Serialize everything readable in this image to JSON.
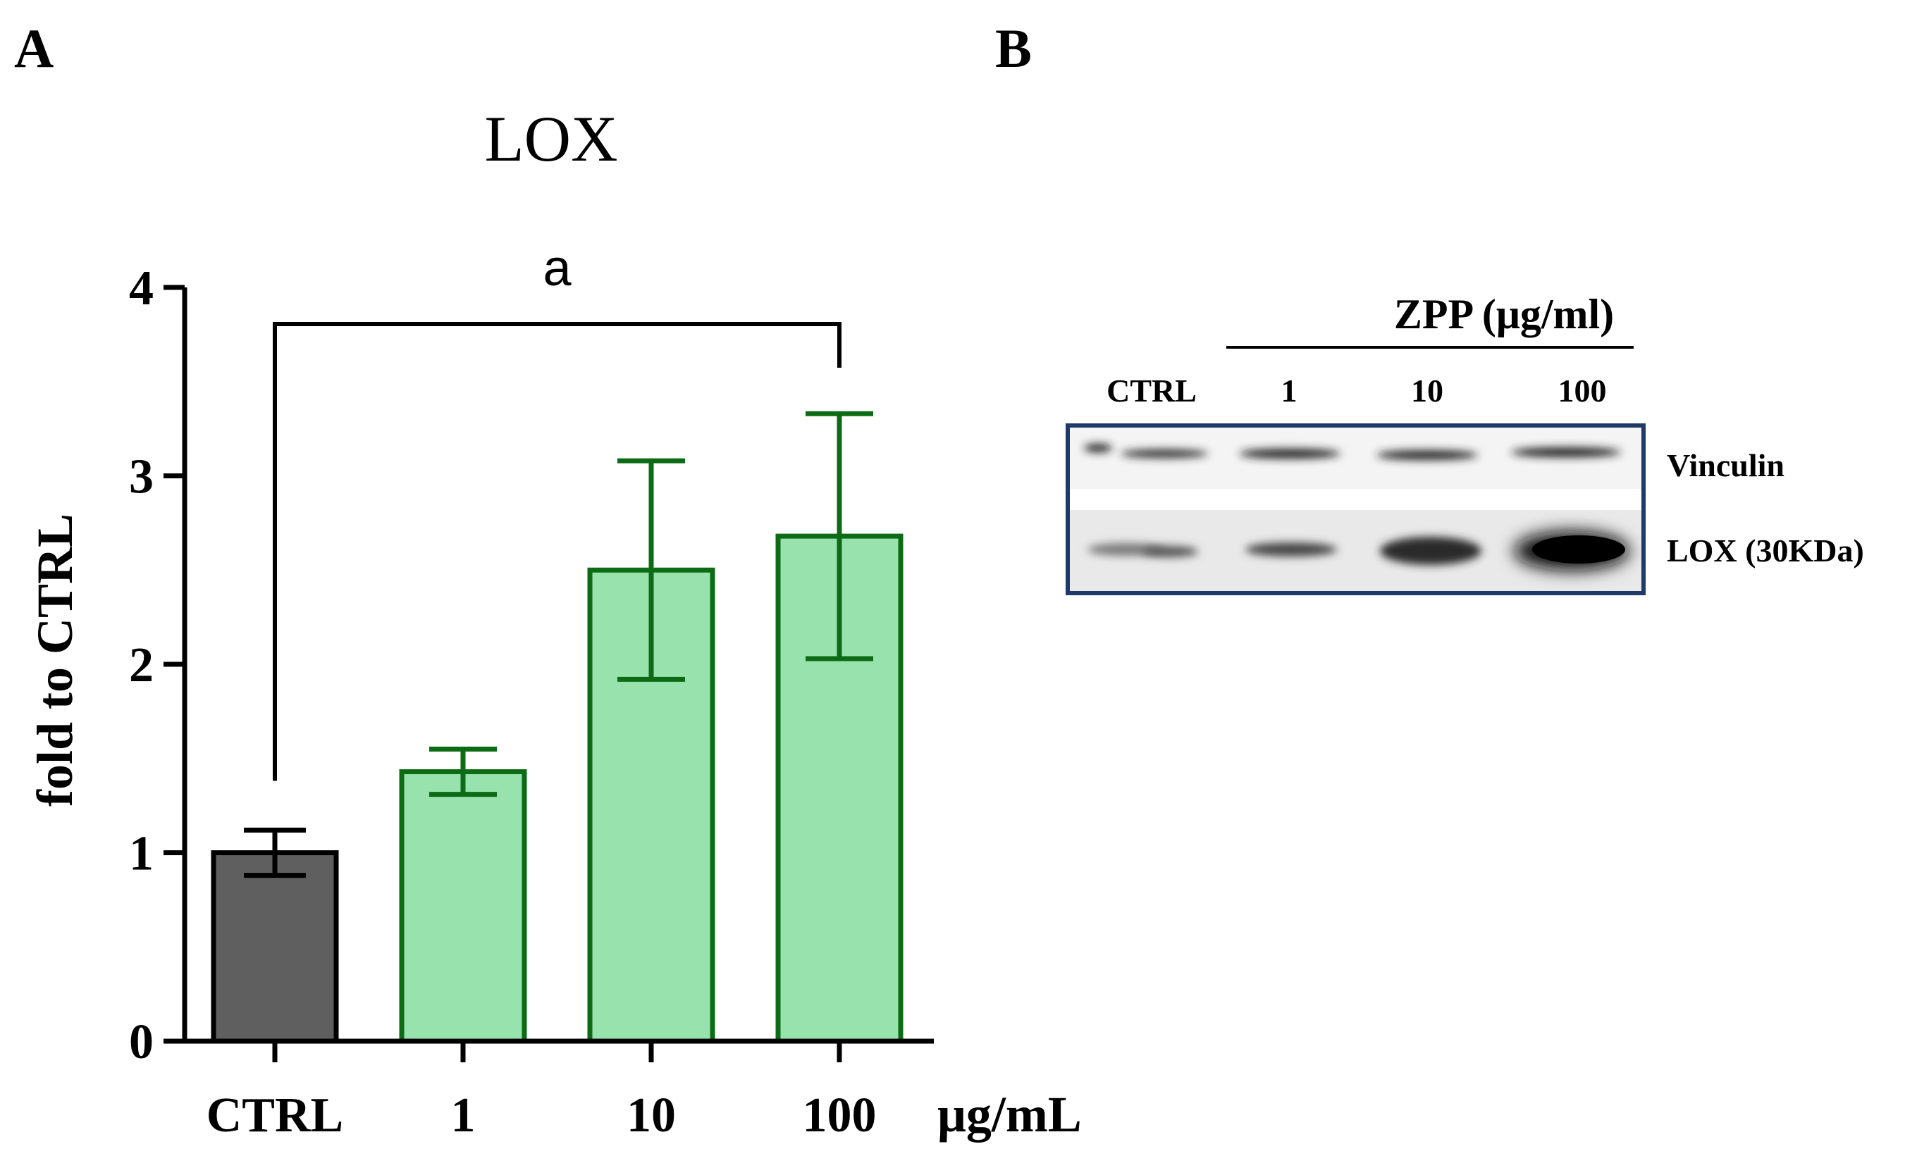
{
  "panels": {
    "a_label": "A",
    "b_label": "B"
  },
  "chart_data": {
    "type": "bar",
    "title": "LOX",
    "ylabel": "fold to CTRL",
    "xunit": "μg/mL",
    "categories": [
      "CTRL",
      "1",
      "10",
      "100"
    ],
    "values": [
      1.0,
      1.43,
      2.5,
      2.68
    ],
    "errors": [
      0.12,
      0.12,
      0.58,
      0.65
    ],
    "ylim": [
      0,
      4
    ],
    "yticks": [
      "0",
      "1",
      "2",
      "3",
      "4"
    ],
    "bar_colors": [
      "#5f5f5f",
      "#98e2ae",
      "#98e2ae",
      "#98e2ae"
    ],
    "edge_colors": [
      "#000000",
      "#0e6b15",
      "#0e6b15",
      "#0e6b15"
    ],
    "significance": {
      "label": "a",
      "from": "CTRL",
      "to": "100"
    },
    "grid": false,
    "legend": "none"
  },
  "blot": {
    "group_label": "ZPP (μg/ml)",
    "lanes": [
      "CTRL",
      "1",
      "10",
      "100"
    ],
    "rows": [
      "Vinculin",
      "LOX (30KDa)"
    ],
    "frame_color": "#1f3a68"
  }
}
